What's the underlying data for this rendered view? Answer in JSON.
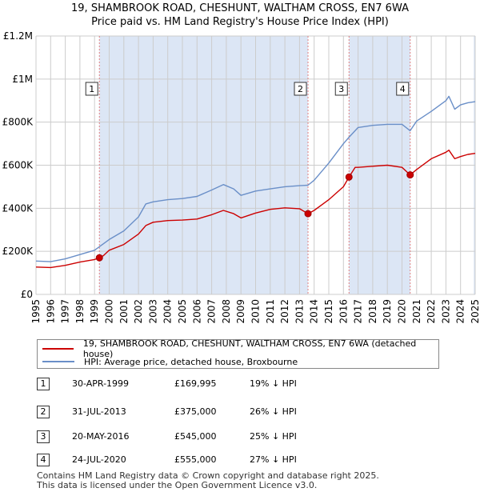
{
  "header": {
    "title_line1": "19, SHAMBROOK ROAD, CHESHUNT, WALTHAM CROSS, EN7 6WA",
    "title_line2": "Price paid vs. HM Land Registry's House Price Index (HPI)"
  },
  "colors": {
    "price_line": "#cc0000",
    "hpi_line": "#6a8fc8",
    "shade": "#dce6f5",
    "grid": "#cccccc",
    "vline": "#e08080"
  },
  "chart_data": {
    "type": "line",
    "title": "19, SHAMBROOK ROAD, CHESHUNT, WALTHAM CROSS, EN7 6WA — Price paid vs. HM Land Registry's House Price Index (HPI)",
    "xlabel": "",
    "ylabel": "",
    "xlim": [
      1995,
      2025
    ],
    "ylim": [
      0,
      1200000
    ],
    "x_ticks": [
      "1995",
      "1996",
      "1997",
      "1998",
      "1999",
      "2000",
      "2001",
      "2002",
      "2003",
      "2004",
      "2005",
      "2006",
      "2007",
      "2008",
      "2009",
      "2010",
      "2011",
      "2012",
      "2013",
      "2014",
      "2015",
      "2016",
      "2017",
      "2018",
      "2019",
      "2020",
      "2021",
      "2022",
      "2023",
      "2024",
      "2025"
    ],
    "y_ticks": [
      {
        "value": 0,
        "label": "£0"
      },
      {
        "value": 200000,
        "label": "£200K"
      },
      {
        "value": 400000,
        "label": "£400K"
      },
      {
        "value": 600000,
        "label": "£600K"
      },
      {
        "value": 800000,
        "label": "£800K"
      },
      {
        "value": 1000000,
        "label": "£1M"
      },
      {
        "value": 1200000,
        "label": "£1.2M"
      }
    ],
    "grid": true,
    "legend_position": "bottom",
    "shaded_ranges": [
      [
        1999.33,
        2013.58
      ],
      [
        2016.38,
        2020.56
      ],
      [
        2024.9,
        2025.0
      ]
    ],
    "series": [
      {
        "name": "19, SHAMBROOK ROAD, CHESHUNT, WALTHAM CROSS, EN7 6WA (detached house)",
        "color": "#cc0000",
        "x": [
          1995,
          1996,
          1997,
          1998,
          1999.0,
          1999.33,
          1999.6,
          2000,
          2001,
          2002,
          2002.5,
          2003,
          2004,
          2005,
          2006,
          2007,
          2007.8,
          2008.5,
          2009,
          2010,
          2011,
          2012,
          2013,
          2013.58,
          2014,
          2015,
          2016,
          2016.38,
          2016.8,
          2017,
          2018,
          2019,
          2020,
          2020.56,
          2021,
          2022,
          2023,
          2023.2,
          2023.6,
          2024,
          2024.5,
          2025
        ],
        "y": [
          127000,
          125000,
          135000,
          150000,
          162000,
          169995,
          180000,
          205000,
          232000,
          280000,
          320000,
          335000,
          343000,
          345000,
          350000,
          370000,
          390000,
          375000,
          355000,
          378000,
          395000,
          402000,
          398000,
          375000,
          390000,
          440000,
          500000,
          545000,
          590000,
          590000,
          595000,
          600000,
          590000,
          555000,
          580000,
          630000,
          660000,
          670000,
          630000,
          640000,
          650000,
          655000
        ]
      },
      {
        "name": "HPI: Average price, detached house, Broxbourne",
        "color": "#6a8fc8",
        "x": [
          1995,
          1996,
          1997,
          1998,
          1999,
          2000,
          2001,
          2002,
          2002.5,
          2003,
          2004,
          2005,
          2006,
          2007,
          2007.8,
          2008.5,
          2009,
          2010,
          2011,
          2012,
          2013,
          2013.58,
          2014,
          2015,
          2016,
          2016.38,
          2017,
          2018,
          2019,
          2020,
          2020.56,
          2021,
          2022,
          2023,
          2023.2,
          2023.6,
          2024,
          2024.5,
          2025
        ],
        "y": [
          155000,
          152000,
          165000,
          185000,
          205000,
          255000,
          295000,
          360000,
          420000,
          430000,
          440000,
          445000,
          455000,
          485000,
          510000,
          490000,
          460000,
          480000,
          490000,
          500000,
          505000,
          507000,
          530000,
          610000,
          700000,
          730000,
          775000,
          785000,
          790000,
          790000,
          760000,
          805000,
          850000,
          900000,
          920000,
          860000,
          880000,
          890000,
          895000
        ]
      }
    ],
    "sales": [
      {
        "num": "1",
        "x": 1999.33,
        "y": 169995
      },
      {
        "num": "2",
        "x": 2013.58,
        "y": 375000
      },
      {
        "num": "3",
        "x": 2016.38,
        "y": 545000
      },
      {
        "num": "4",
        "x": 2020.56,
        "y": 555000
      }
    ]
  },
  "legend": {
    "property_label": "19, SHAMBROOK ROAD, CHESHUNT, WALTHAM CROSS, EN7 6WA (detached house)",
    "hpi_label": "HPI: Average price, detached house, Broxbourne"
  },
  "sales_table": [
    {
      "num": "1",
      "date": "30-APR-1999",
      "price": "£169,995",
      "hpi": "19% ↓ HPI"
    },
    {
      "num": "2",
      "date": "31-JUL-2013",
      "price": "£375,000",
      "hpi": "26% ↓ HPI"
    },
    {
      "num": "3",
      "date": "20-MAY-2016",
      "price": "£545,000",
      "hpi": "25% ↓ HPI"
    },
    {
      "num": "4",
      "date": "24-JUL-2020",
      "price": "£555,000",
      "hpi": "27% ↓ HPI"
    }
  ],
  "footer": {
    "line1": "Contains HM Land Registry data © Crown copyright and database right 2025.",
    "line2": "This data is licensed under the Open Government Licence v3.0."
  }
}
